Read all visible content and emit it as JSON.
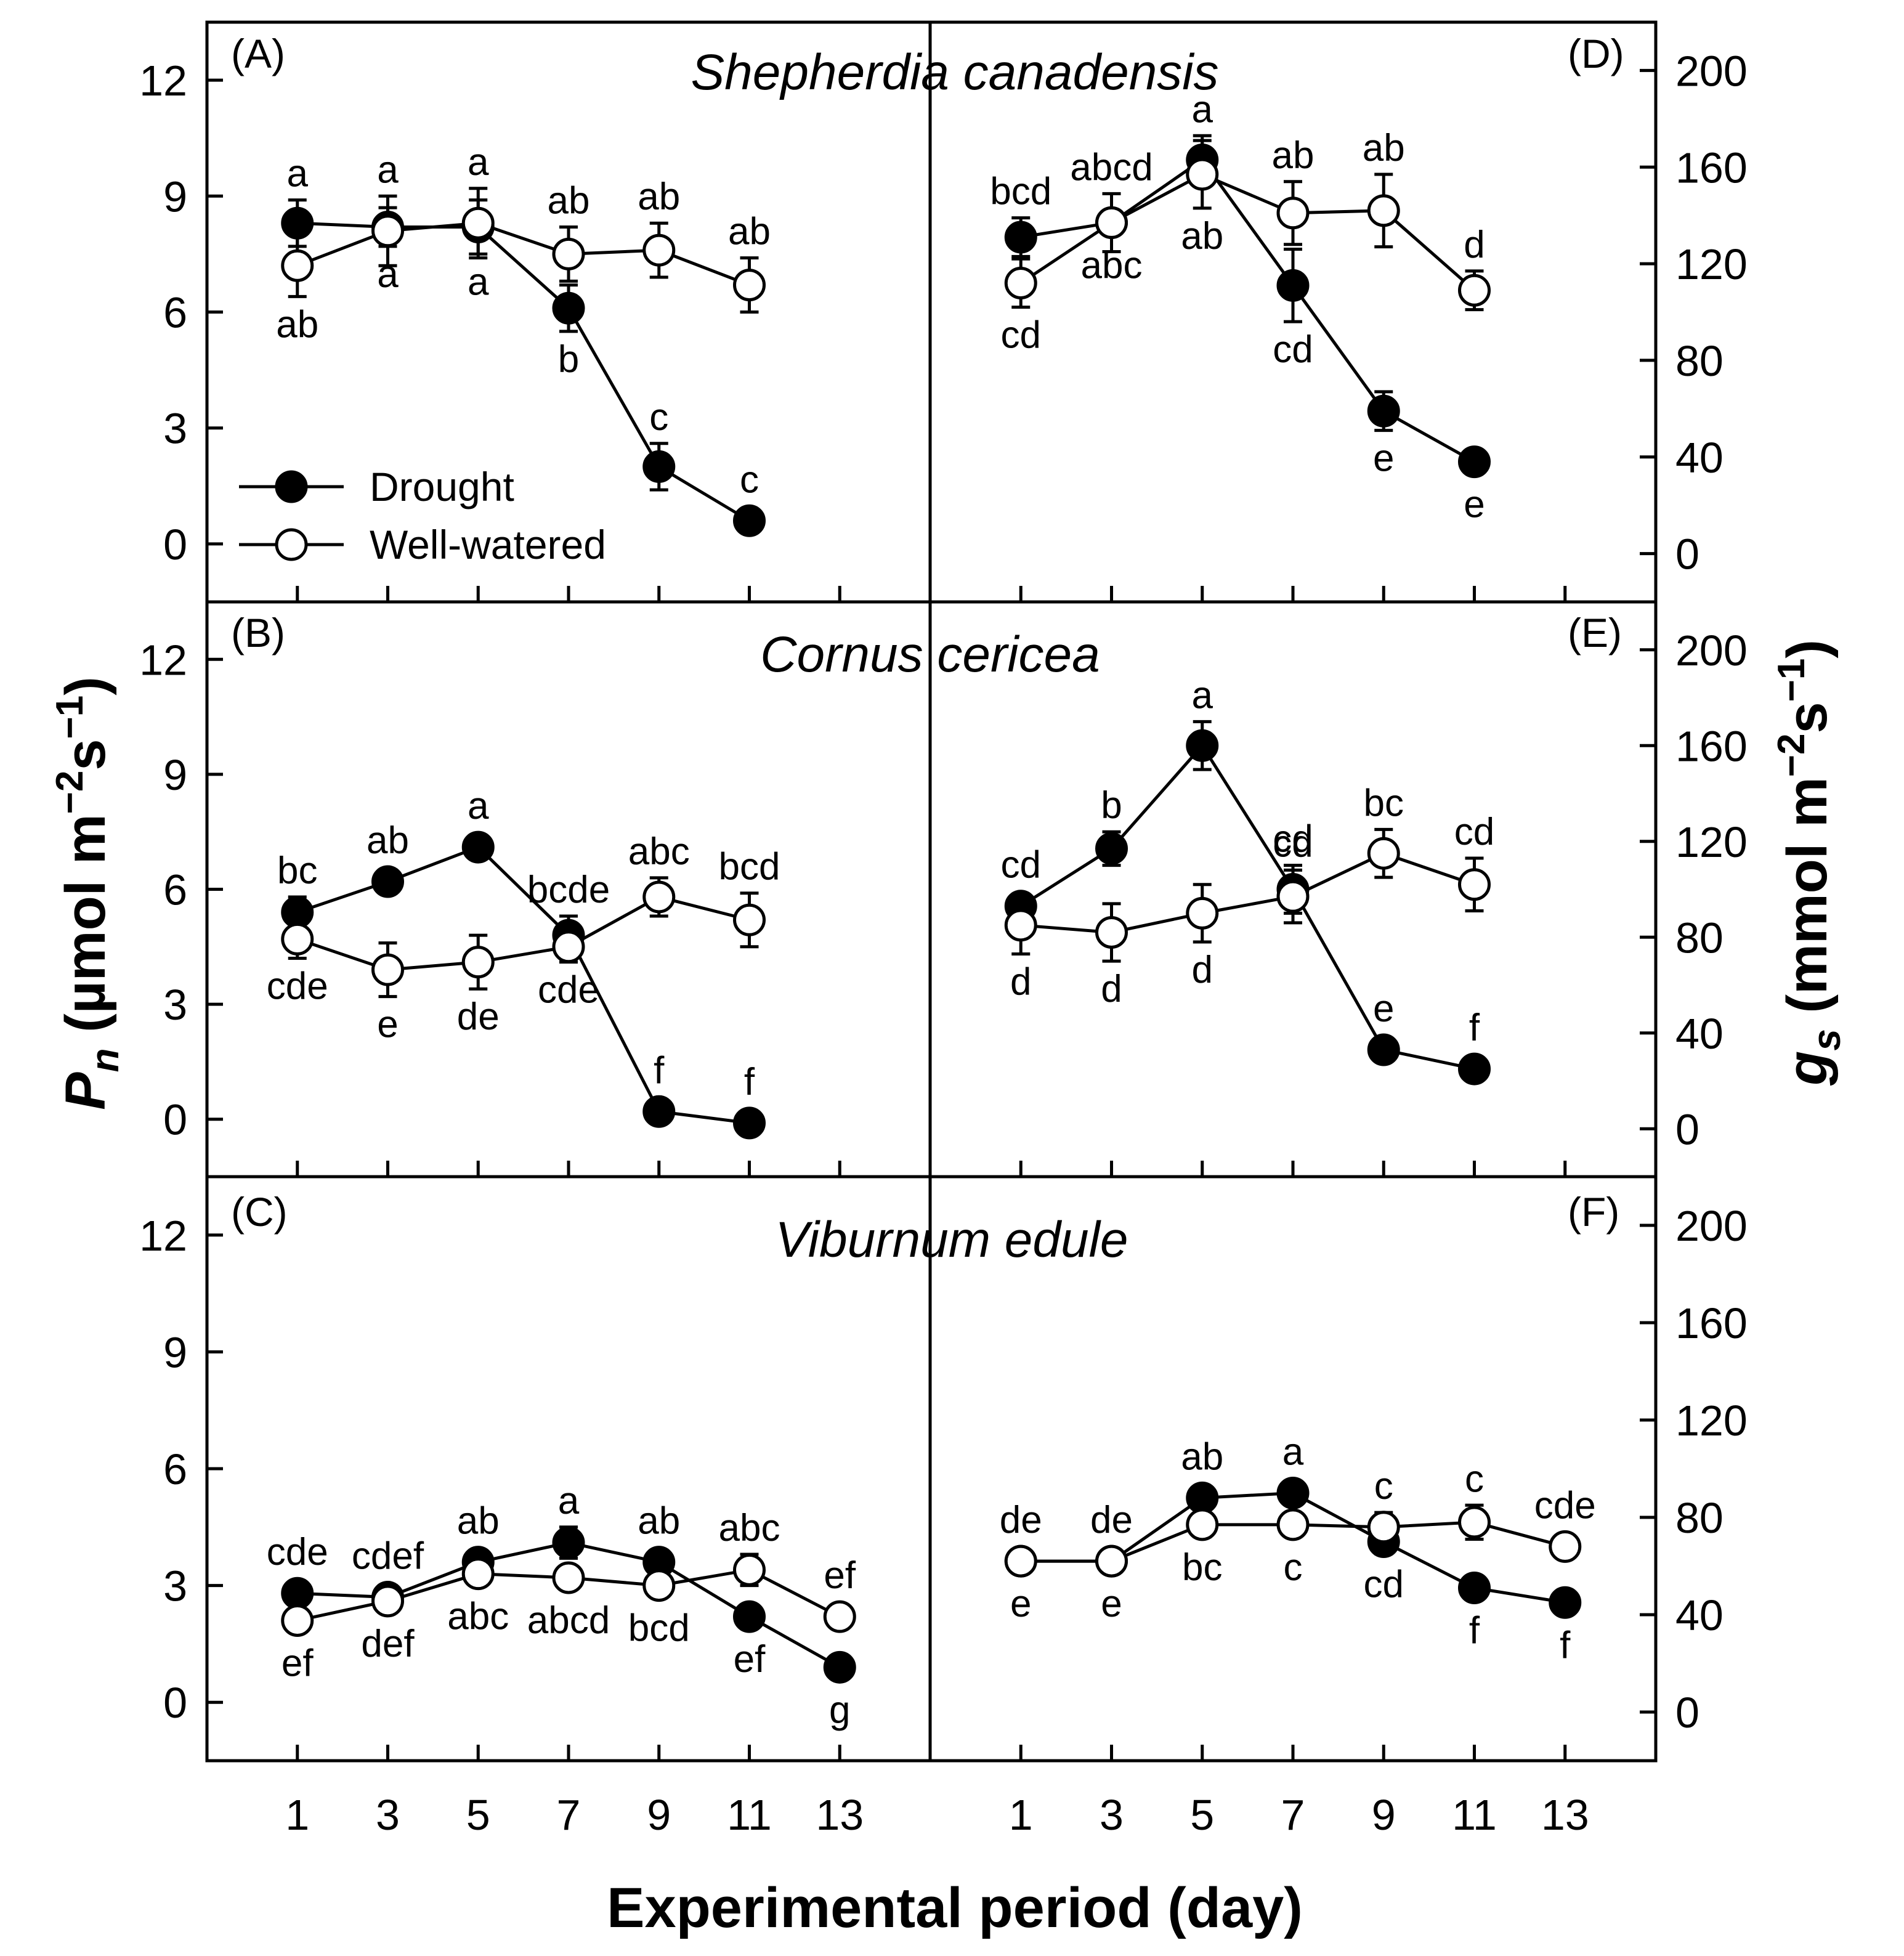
{
  "figure": {
    "xlabel": "Experimental period (day)",
    "ylabel_left": {
      "main": "P",
      "sub": "n",
      "unit_pre": " (µmol m",
      "sup1": "−2",
      "mid": "s",
      "sup2": "−1",
      "unit_post": ")"
    },
    "ylabel_right": {
      "main": "g",
      "sub": "s",
      "unit_pre": " (mmol m",
      "sup1": "−2",
      "mid": "s",
      "sup2": "−1",
      "unit_post": ")"
    },
    "legend": {
      "drought": "Drought",
      "well_watered": "Well-watered"
    },
    "x_ticks": [
      "1",
      "3",
      "5",
      "7",
      "9",
      "11",
      "13"
    ],
    "pn_ticks": [
      "0",
      "3",
      "6",
      "9",
      "12"
    ],
    "gs_ticks": [
      "0",
      "40",
      "80",
      "120",
      "160",
      "200"
    ],
    "species": [
      "Shepherdia canadensis",
      "Cornus cericea",
      "Viburnum edule"
    ],
    "colors": {
      "drought": "#000000",
      "well_watered": "#ffffff",
      "stroke": "#000000"
    }
  },
  "chart_data": [
    {
      "type": "line",
      "panel": "(A)",
      "variable": "Pn",
      "xlabel": "Experimental period (day)",
      "ylim": [
        -1.5,
        13.5
      ],
      "xlim": [
        -1,
        15
      ],
      "series": [
        {
          "name": "Drought",
          "x": [
            1,
            3,
            5,
            7,
            9,
            11
          ],
          "values": [
            8.3,
            8.2,
            8.2,
            6.1,
            2.0,
            0.6
          ],
          "err": [
            0.6,
            0.5,
            0.7,
            0.6,
            0.6,
            0.3
          ],
          "labels": [
            "a",
            "a",
            "a",
            "b",
            "c",
            "c"
          ],
          "label_pos": [
            "above",
            "below",
            "below",
            "below",
            "above",
            "above"
          ]
        },
        {
          "name": "Well-watered",
          "x": [
            1,
            3,
            5,
            7,
            9,
            11
          ],
          "values": [
            7.2,
            8.1,
            8.3,
            7.5,
            7.6,
            6.7
          ],
          "err": [
            0.8,
            0.9,
            0.9,
            0.7,
            0.7,
            0.7
          ],
          "labels": [
            "ab",
            "a",
            "a",
            "ab",
            "ab",
            "ab"
          ],
          "label_pos": [
            "below",
            "above",
            "above",
            "above",
            "above",
            "above"
          ]
        }
      ]
    },
    {
      "type": "line",
      "panel": "(B)",
      "variable": "Pn",
      "xlabel": "Experimental period (day)",
      "ylim": [
        -1.5,
        13.5
      ],
      "xlim": [
        -1,
        15
      ],
      "series": [
        {
          "name": "Drought",
          "x": [
            1,
            3,
            5,
            7,
            9,
            11
          ],
          "values": [
            5.4,
            6.2,
            7.1,
            4.8,
            0.2,
            -0.1
          ],
          "err": [
            0.4,
            0.3,
            0.2,
            0.5,
            0.2,
            0.2
          ],
          "labels": [
            "bc",
            "ab",
            "a",
            "bcde",
            "f",
            "f"
          ],
          "label_pos": [
            "above",
            "above",
            "above",
            "above",
            "above",
            "above"
          ]
        },
        {
          "name": "Well-watered",
          "x": [
            1,
            3,
            5,
            7,
            9,
            11
          ],
          "values": [
            4.7,
            3.9,
            4.1,
            4.5,
            5.8,
            5.2
          ],
          "err": [
            0.5,
            0.7,
            0.7,
            0.4,
            0.5,
            0.7
          ],
          "labels": [
            "cde",
            "e",
            "de",
            "cde",
            "abc",
            "bcd"
          ],
          "label_pos": [
            "below",
            "below",
            "below",
            "below",
            "above",
            "above"
          ]
        }
      ]
    },
    {
      "type": "line",
      "panel": "(C)",
      "variable": "Pn",
      "xlabel": "Experimental period (day)",
      "ylim": [
        -1.5,
        13.5
      ],
      "xlim": [
        -1,
        15
      ],
      "series": [
        {
          "name": "Drought",
          "x": [
            1,
            3,
            5,
            7,
            9,
            11,
            13
          ],
          "values": [
            2.8,
            2.7,
            3.6,
            4.1,
            3.6,
            2.2,
            0.9
          ],
          "err": [
            0.2,
            0.2,
            0.3,
            0.4,
            0.3,
            0.2,
            0.1
          ],
          "labels": [
            "cde",
            "cdef",
            "ab",
            "a",
            "ab",
            "ef",
            "g"
          ],
          "label_pos": [
            "above",
            "above",
            "above",
            "above",
            "above",
            "below",
            "below"
          ]
        },
        {
          "name": "Well-watered",
          "x": [
            1,
            3,
            5,
            7,
            9,
            11,
            13
          ],
          "values": [
            2.1,
            2.6,
            3.3,
            3.2,
            3.0,
            3.4,
            2.2
          ],
          "err": [
            0.3,
            0.3,
            0.3,
            0.3,
            0.3,
            0.4,
            0.2
          ],
          "labels": [
            "ef",
            "def",
            "abc",
            "abcd",
            "bcd",
            "abc",
            "ef"
          ],
          "label_pos": [
            "below",
            "below",
            "below",
            "below",
            "below",
            "above",
            "above"
          ]
        }
      ]
    },
    {
      "type": "line",
      "panel": "(D)",
      "variable": "gs",
      "xlabel": "Experimental period (day)",
      "ylim": [
        -20,
        220
      ],
      "xlim": [
        -1,
        15
      ],
      "series": [
        {
          "name": "Drought",
          "x": [
            1,
            3,
            5,
            7,
            9,
            11
          ],
          "values": [
            131,
            137,
            163,
            111,
            59,
            38
          ],
          "err": [
            8,
            5,
            10,
            15,
            8,
            4
          ],
          "labels": [
            "bcd",
            "abc",
            "a",
            "cd",
            "e",
            "e"
          ],
          "label_pos": [
            "above",
            "below",
            "above",
            "below",
            "below",
            "below"
          ]
        },
        {
          "name": "Well-watered",
          "x": [
            1,
            3,
            5,
            7,
            9,
            11
          ],
          "values": [
            112,
            137,
            157,
            141,
            142,
            109
          ],
          "err": [
            10,
            12,
            14,
            13,
            15,
            8
          ],
          "labels": [
            "cd",
            "abcd",
            "ab",
            "ab",
            "ab",
            "d"
          ],
          "label_pos": [
            "below",
            "above",
            "below",
            "above",
            "above",
            "above"
          ]
        }
      ]
    },
    {
      "type": "line",
      "panel": "(E)",
      "variable": "gs",
      "xlabel": "Experimental period (day)",
      "ylim": [
        -20,
        220
      ],
      "xlim": [
        -1,
        15
      ],
      "series": [
        {
          "name": "Drought",
          "x": [
            1,
            3,
            5,
            7,
            9,
            11
          ],
          "values": [
            93,
            117,
            160,
            100,
            33,
            25
          ],
          "err": [
            5,
            7,
            10,
            10,
            4,
            3
          ],
          "labels": [
            "cd",
            "b",
            "a",
            "cd",
            "e",
            "f"
          ],
          "label_pos": [
            "above",
            "above",
            "above",
            "above",
            "above",
            "above"
          ]
        },
        {
          "name": "Well-watered",
          "x": [
            1,
            3,
            5,
            7,
            9,
            11
          ],
          "values": [
            85,
            82,
            90,
            97,
            115,
            102
          ],
          "err": [
            12,
            12,
            12,
            11,
            10,
            11
          ],
          "labels": [
            "d",
            "d",
            "d",
            "cd",
            "bc",
            "cd"
          ],
          "label_pos": [
            "below",
            "below",
            "below",
            "above",
            "above",
            "above"
          ]
        }
      ]
    },
    {
      "type": "line",
      "panel": "(F)",
      "variable": "gs",
      "xlabel": "Experimental period (day)",
      "ylim": [
        -20,
        220
      ],
      "xlim": [
        -1,
        15
      ],
      "series": [
        {
          "name": "Drought",
          "x": [
            1,
            3,
            5,
            7,
            9,
            11,
            13
          ],
          "values": [
            62,
            62,
            88,
            90,
            70,
            51,
            45
          ],
          "err": [
            3,
            3,
            4,
            4,
            5,
            3,
            2
          ],
          "labels": [
            "e",
            "e",
            "ab",
            "a",
            "cd",
            "f",
            "f"
          ],
          "label_pos": [
            "below",
            "below",
            "above",
            "above",
            "below",
            "below",
            "below"
          ]
        },
        {
          "name": "Well-watered",
          "x": [
            1,
            3,
            5,
            7,
            9,
            11,
            13
          ],
          "values": [
            62,
            62,
            77,
            77,
            76,
            78,
            68
          ],
          "err": [
            3,
            3,
            5,
            4,
            6,
            7,
            3
          ],
          "labels": [
            "de",
            "de",
            "bc",
            "c",
            "c",
            "c",
            "cde"
          ],
          "label_pos": [
            "above",
            "above",
            "below",
            "below",
            "above",
            "above",
            "above"
          ]
        }
      ]
    }
  ]
}
